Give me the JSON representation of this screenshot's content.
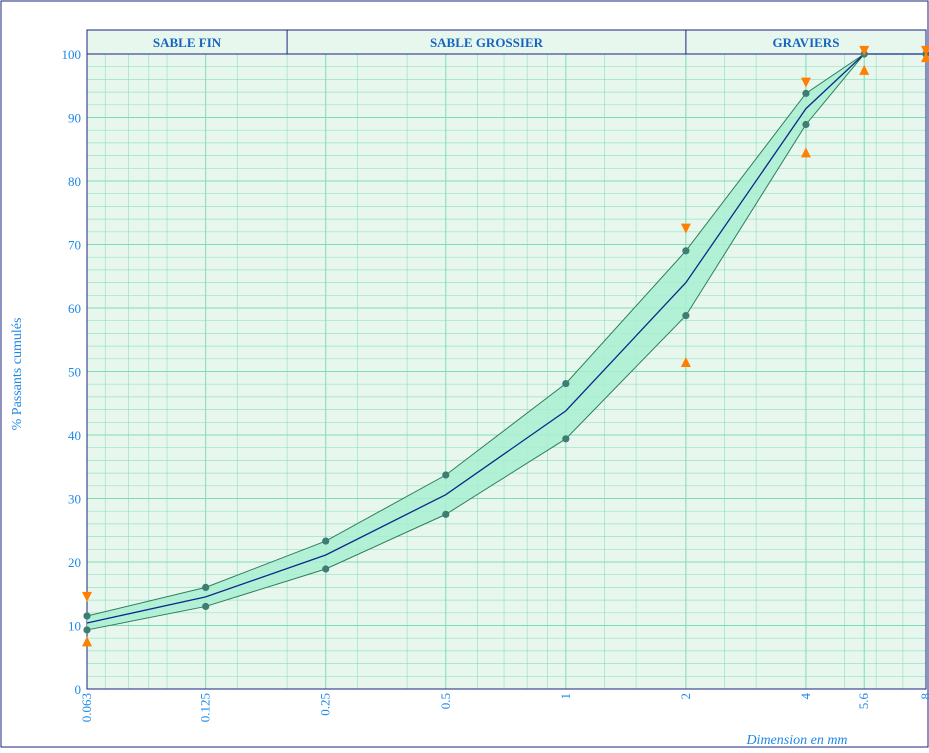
{
  "chart_data": {
    "type": "line",
    "ylabel": "% Passants cumulés",
    "xlabel": "Dimension en mm",
    "x_scale": "log",
    "ylim": [
      0,
      100
    ],
    "y_ticks": [
      "0",
      "10",
      "20",
      "30",
      "40",
      "50",
      "60",
      "70",
      "80",
      "90",
      "100"
    ],
    "x_ticks": [
      "0.063",
      "0.125",
      "0.25",
      "0.5",
      "1",
      "2",
      "4",
      "5.6",
      "8"
    ],
    "zones": [
      "SABLE FIN",
      "SABLE GROSSIER",
      "GRAVIERS"
    ],
    "grid": true,
    "series": [
      {
        "role": "upper",
        "x": [
          0.063,
          0.125,
          0.25,
          0.5,
          1,
          2,
          4,
          5.6,
          8
        ],
        "y": [
          11.5,
          16,
          23.3,
          33.7,
          48.1,
          69,
          93.8,
          100,
          100
        ]
      },
      {
        "role": "middle",
        "x": [
          0.063,
          0.125,
          0.25,
          0.5,
          1,
          2,
          4,
          5.6,
          8
        ],
        "y": [
          10.4,
          14.5,
          21.1,
          30.6,
          43.8,
          64,
          91.4,
          100,
          100
        ]
      },
      {
        "role": "lower",
        "x": [
          0.063,
          0.125,
          0.25,
          0.5,
          1,
          2,
          4,
          5.6,
          8
        ],
        "y": [
          9.3,
          13,
          18.9,
          27.5,
          39.4,
          58.8,
          88.9,
          100,
          100
        ]
      }
    ],
    "upper_limits": {
      "x": [
        0.063,
        2,
        4,
        5.6,
        8
      ],
      "y": [
        14.5,
        72.5,
        95.5,
        100.5,
        100.5
      ]
    },
    "lower_limits": {
      "x": [
        0.063,
        2,
        4,
        5.6,
        8
      ],
      "y": [
        7.5,
        51.5,
        84.5,
        97.5,
        99.5
      ]
    },
    "colors": {
      "plot_background": "#e8f7ee",
      "grid": "#7fdcb8",
      "band_fill": "#a8f0d0",
      "band_line": "#2e7d5b",
      "middle_line": "#0d2a8a",
      "marker": "#3d7d74",
      "limit_marker": "#ff8000",
      "text": "#1e88e5",
      "frame": "#1a237e"
    }
  }
}
